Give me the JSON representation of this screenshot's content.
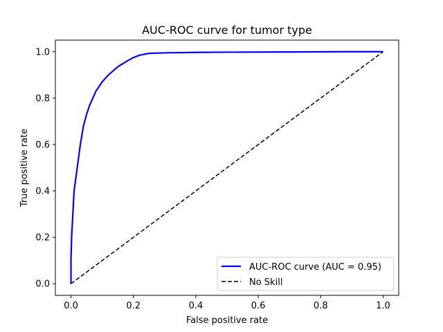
{
  "chart_data": {
    "type": "line",
    "title": "AUC-ROC curve for tumor type",
    "xlabel": "False positive rate",
    "ylabel": "True positive rate",
    "xlim": [
      -0.05,
      1.05
    ],
    "ylim": [
      -0.05,
      1.05
    ],
    "x_ticks": [
      "0.0",
      "0.2",
      "0.4",
      "0.6",
      "0.8",
      "1.0"
    ],
    "y_ticks": [
      "0.0",
      "0.2",
      "0.4",
      "0.6",
      "0.8",
      "1.0"
    ],
    "grid": false,
    "legend_position": "lower-right",
    "series": [
      {
        "name": "AUC-ROC curve (AUC = 0.95)",
        "color": "#0000ff",
        "style": "solid",
        "x": [
          0.0,
          0.0,
          0.002,
          0.004,
          0.006,
          0.01,
          0.015,
          0.02,
          0.03,
          0.04,
          0.05,
          0.06,
          0.08,
          0.1,
          0.12,
          0.15,
          0.18,
          0.2,
          0.22,
          0.25,
          0.3,
          0.4,
          0.5,
          0.7,
          0.9,
          1.0
        ],
        "y": [
          0.0,
          0.1,
          0.2,
          0.25,
          0.3,
          0.4,
          0.45,
          0.5,
          0.6,
          0.68,
          0.73,
          0.77,
          0.83,
          0.87,
          0.9,
          0.935,
          0.96,
          0.975,
          0.985,
          0.993,
          0.995,
          0.997,
          0.998,
          0.999,
          1.0,
          1.0
        ]
      },
      {
        "name": "No Skill",
        "color": "#000000",
        "style": "dashed",
        "x": [
          0.0,
          1.0
        ],
        "y": [
          0.0,
          1.0
        ]
      }
    ]
  }
}
